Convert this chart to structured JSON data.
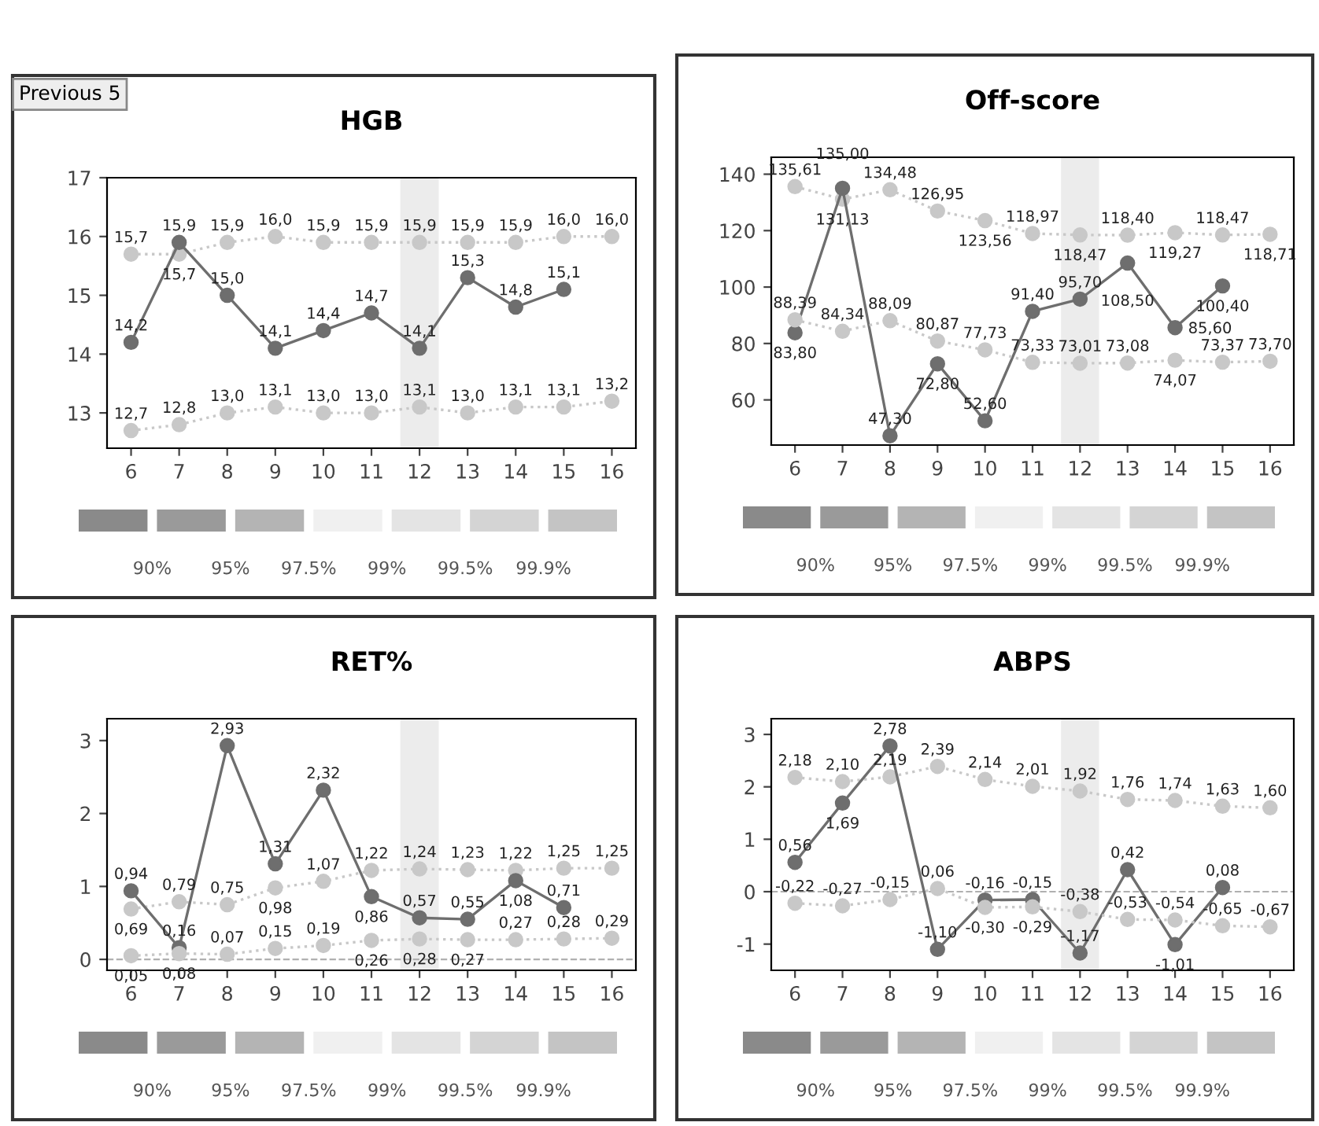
{
  "chart_data": [
    {
      "type": "line",
      "title": "HGB",
      "x": [
        6,
        7,
        8,
        9,
        10,
        11,
        12,
        13,
        14,
        15,
        16
      ],
      "xlim": [
        5.5,
        16.5
      ],
      "xticks": [
        6,
        7,
        8,
        9,
        10,
        11,
        12,
        13,
        14,
        15,
        16
      ],
      "ylim": [
        12.4,
        17
      ],
      "yticks": [
        13,
        14,
        15,
        16,
        17
      ],
      "marker": "circle",
      "grid": false,
      "legend": false,
      "bands": [
        {
          "axis": "x",
          "from": 11.6,
          "to": 12.4,
          "color": "#ececec"
        }
      ],
      "annotations": [
        "Previous 5",
        "90%",
        "95%",
        "97.5%",
        "99%",
        "99.5%",
        "99.9%"
      ],
      "series": [
        {
          "color": "#c8c8c8",
          "line_style": "dotted",
          "values": [
            15.7,
            15.7,
            15.9,
            16.0,
            15.9,
            15.9,
            15.9,
            15.9,
            15.9,
            16.0,
            16.0
          ],
          "value_labels": [
            "15,7",
            "15,7",
            "15,9",
            "16,0",
            "15,9",
            "15,9",
            "15,9",
            "15,9",
            "15,9",
            "16,0",
            "16,0"
          ]
        },
        {
          "color": "#6e6e6e",
          "line_style": "solid",
          "values": [
            14.2,
            15.9,
            15.0,
            14.1,
            14.4,
            14.7,
            14.1,
            15.3,
            14.8,
            15.1,
            null
          ],
          "value_labels": [
            "14,2",
            "15,9",
            "15,0",
            "14,1",
            "14,4",
            "14,7",
            "14,1",
            "15,3",
            "14,8",
            "15,1",
            null
          ]
        },
        {
          "color": "#c8c8c8",
          "line_style": "dotted",
          "values": [
            12.7,
            12.8,
            13.0,
            13.1,
            13.0,
            13.0,
            13.1,
            13.0,
            13.1,
            13.1,
            13.2
          ],
          "value_labels": [
            "12,7",
            "12,8",
            "13,0",
            "13,1",
            "13,0",
            "13,0",
            "13,1",
            "13,0",
            "13,1",
            "13,1",
            "13,2"
          ]
        }
      ]
    },
    {
      "type": "line",
      "title": "Off-score",
      "x": [
        6,
        7,
        8,
        9,
        10,
        11,
        12,
        13,
        14,
        15,
        16
      ],
      "xlim": [
        5.5,
        16.5
      ],
      "xticks": [
        6,
        7,
        8,
        9,
        10,
        11,
        12,
        13,
        14,
        15,
        16
      ],
      "ylim": [
        44,
        146
      ],
      "yticks": [
        60,
        80,
        100,
        120,
        140
      ],
      "marker": "circle",
      "grid": false,
      "legend": false,
      "bands": [
        {
          "axis": "x",
          "from": 11.6,
          "to": 12.4,
          "color": "#ececec"
        }
      ],
      "annotations": [
        "90%",
        "95%",
        "97.5%",
        "99%",
        "99.5%",
        "99.9%"
      ],
      "series": [
        {
          "color": "#c8c8c8",
          "line_style": "dotted",
          "values": [
            135.61,
            131.13,
            134.48,
            126.95,
            123.56,
            118.97,
            118.47,
            118.4,
            119.27,
            118.47,
            118.71
          ],
          "value_labels": [
            "135,61",
            "131,13",
            "134,48",
            "126,95",
            "123,56",
            "118,97",
            "118,47",
            "118,40",
            "119,27",
            "118,47",
            "118,71"
          ]
        },
        {
          "color": "#6e6e6e",
          "line_style": "solid",
          "values": [
            83.8,
            135.0,
            47.3,
            72.8,
            52.6,
            91.4,
            95.7,
            108.5,
            85.6,
            100.4,
            null
          ],
          "value_labels": [
            "83,80",
            "135,00",
            "47,30",
            "72,80",
            "52,60",
            "91,40",
            "95,70",
            "108,50",
            "85,60",
            "100,40",
            null
          ]
        },
        {
          "color": "#c8c8c8",
          "line_style": "dotted",
          "values": [
            88.39,
            84.34,
            88.09,
            80.87,
            77.73,
            73.33,
            73.01,
            73.08,
            74.07,
            73.37,
            73.7
          ],
          "value_labels": [
            "88,39",
            "84,34",
            "88,09",
            "80,87",
            "77,73",
            "73,33",
            "73,01",
            "73,08",
            "74,07",
            "73,37",
            "73,70"
          ]
        }
      ]
    },
    {
      "type": "line",
      "title": "RET%",
      "x": [
        6,
        7,
        8,
        9,
        10,
        11,
        12,
        13,
        14,
        15,
        16
      ],
      "xlim": [
        5.5,
        16.5
      ],
      "xticks": [
        6,
        7,
        8,
        9,
        10,
        11,
        12,
        13,
        14,
        15,
        16
      ],
      "ylim": [
        -0.15,
        3.3
      ],
      "yticks": [
        0,
        1,
        2,
        3
      ],
      "marker": "circle",
      "grid": false,
      "legend": false,
      "bands": [
        {
          "axis": "x",
          "from": 11.6,
          "to": 12.4,
          "color": "#ececec"
        }
      ],
      "ref_lines": [
        {
          "axis": "y",
          "value": 0,
          "color": "#b0b0b0",
          "line_style": "dashed"
        }
      ],
      "annotations": [
        "90%",
        "95%",
        "97.5%",
        "99%",
        "99.5%",
        "99.9%"
      ],
      "series": [
        {
          "color": "#c8c8c8",
          "line_style": "dotted",
          "values": [
            0.69,
            0.79,
            0.75,
            0.98,
            1.07,
            1.22,
            1.24,
            1.23,
            1.22,
            1.25,
            1.25
          ],
          "value_labels": [
            "0,69",
            "0,79",
            "0,75",
            "0,98",
            "1,07",
            "1,22",
            "1,24",
            "1,23",
            "1,22",
            "1,25",
            "1,25"
          ]
        },
        {
          "color": "#6e6e6e",
          "line_style": "solid",
          "values": [
            0.94,
            0.16,
            2.93,
            1.31,
            2.32,
            0.86,
            0.57,
            0.55,
            1.08,
            0.71,
            null
          ],
          "value_labels": [
            "0,94",
            "0,16",
            "2,93",
            "1,31",
            "2,32",
            "0,86",
            "0,57",
            "0,55",
            "1,08",
            "0,71",
            null
          ]
        },
        {
          "color": "#c8c8c8",
          "line_style": "dotted",
          "values": [
            0.05,
            0.08,
            0.07,
            0.15,
            0.19,
            0.26,
            0.28,
            0.27,
            0.27,
            0.28,
            0.29
          ],
          "value_labels": [
            "0,05",
            "0,08",
            "0,07",
            "0,15",
            "0,19",
            "0,26",
            "0,28",
            "0,27",
            "0,27",
            "0,28",
            "0,29"
          ]
        }
      ]
    },
    {
      "type": "line",
      "title": "ABPS",
      "x": [
        6,
        7,
        8,
        9,
        10,
        11,
        12,
        13,
        14,
        15,
        16
      ],
      "xlim": [
        5.5,
        16.5
      ],
      "xticks": [
        6,
        7,
        8,
        9,
        10,
        11,
        12,
        13,
        14,
        15,
        16
      ],
      "ylim": [
        -1.5,
        3.3
      ],
      "yticks": [
        -1,
        0,
        1,
        2,
        3
      ],
      "marker": "circle",
      "grid": false,
      "legend": false,
      "bands": [
        {
          "axis": "x",
          "from": 11.6,
          "to": 12.4,
          "color": "#ececec"
        }
      ],
      "ref_lines": [
        {
          "axis": "y",
          "value": 0,
          "color": "#b0b0b0",
          "line_style": "dashed"
        }
      ],
      "annotations": [
        "90%",
        "95%",
        "97.5%",
        "99%",
        "99.5%",
        "99.9%"
      ],
      "series": [
        {
          "color": "#c8c8c8",
          "line_style": "dotted",
          "values": [
            2.18,
            2.1,
            2.19,
            2.39,
            2.14,
            2.01,
            1.92,
            1.76,
            1.74,
            1.63,
            1.6
          ],
          "value_labels": [
            "2,18",
            "2,10",
            "2,19",
            "2,39",
            "2,14",
            "2,01",
            "1,92",
            "1,76",
            "1,74",
            "1,63",
            "1,60"
          ]
        },
        {
          "color": "#6e6e6e",
          "line_style": "solid",
          "values": [
            0.56,
            1.69,
            2.78,
            -1.1,
            -0.16,
            -0.15,
            -1.17,
            0.42,
            -1.01,
            0.08,
            null
          ],
          "value_labels": [
            "0,56",
            "1,69",
            "2,78",
            "-1,10",
            "-0,16",
            "-0,15",
            "-1,17",
            "0,42",
            "-1,01",
            "0,08",
            null
          ]
        },
        {
          "color": "#c8c8c8",
          "line_style": "dotted",
          "values": [
            -0.22,
            -0.27,
            -0.15,
            0.06,
            -0.3,
            -0.29,
            -0.38,
            -0.53,
            -0.54,
            -0.65,
            -0.67
          ],
          "value_labels": [
            "-0,22",
            "-0,27",
            "-0,15",
            "0,06",
            "-0,30",
            "-0,29",
            "-0,38",
            "-0,53",
            "-0,54",
            "-0,65",
            "-0,67"
          ]
        }
      ]
    }
  ]
}
